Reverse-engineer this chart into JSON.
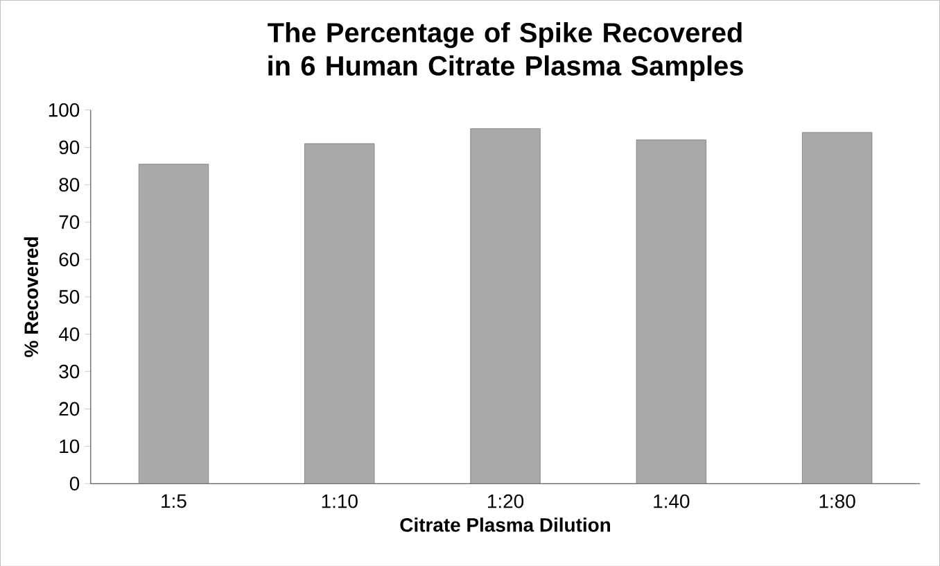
{
  "chart_data": {
    "type": "bar",
    "title": "The Percentage of Spike Recovered in 6 Human Citrate Plasma Samples",
    "xlabel": "Citrate Plasma Dilution",
    "ylabel": "% Recovered",
    "categories": [
      "1:5",
      "1:10",
      "1:20",
      "1:40",
      "1:80"
    ],
    "values": [
      85.5,
      91,
      95,
      92,
      94
    ],
    "color": "#a9a9a9",
    "ylim": [
      0,
      100
    ],
    "yticks": [
      0,
      10,
      20,
      30,
      40,
      50,
      60,
      70,
      80,
      90,
      100
    ],
    "grid": false
  }
}
